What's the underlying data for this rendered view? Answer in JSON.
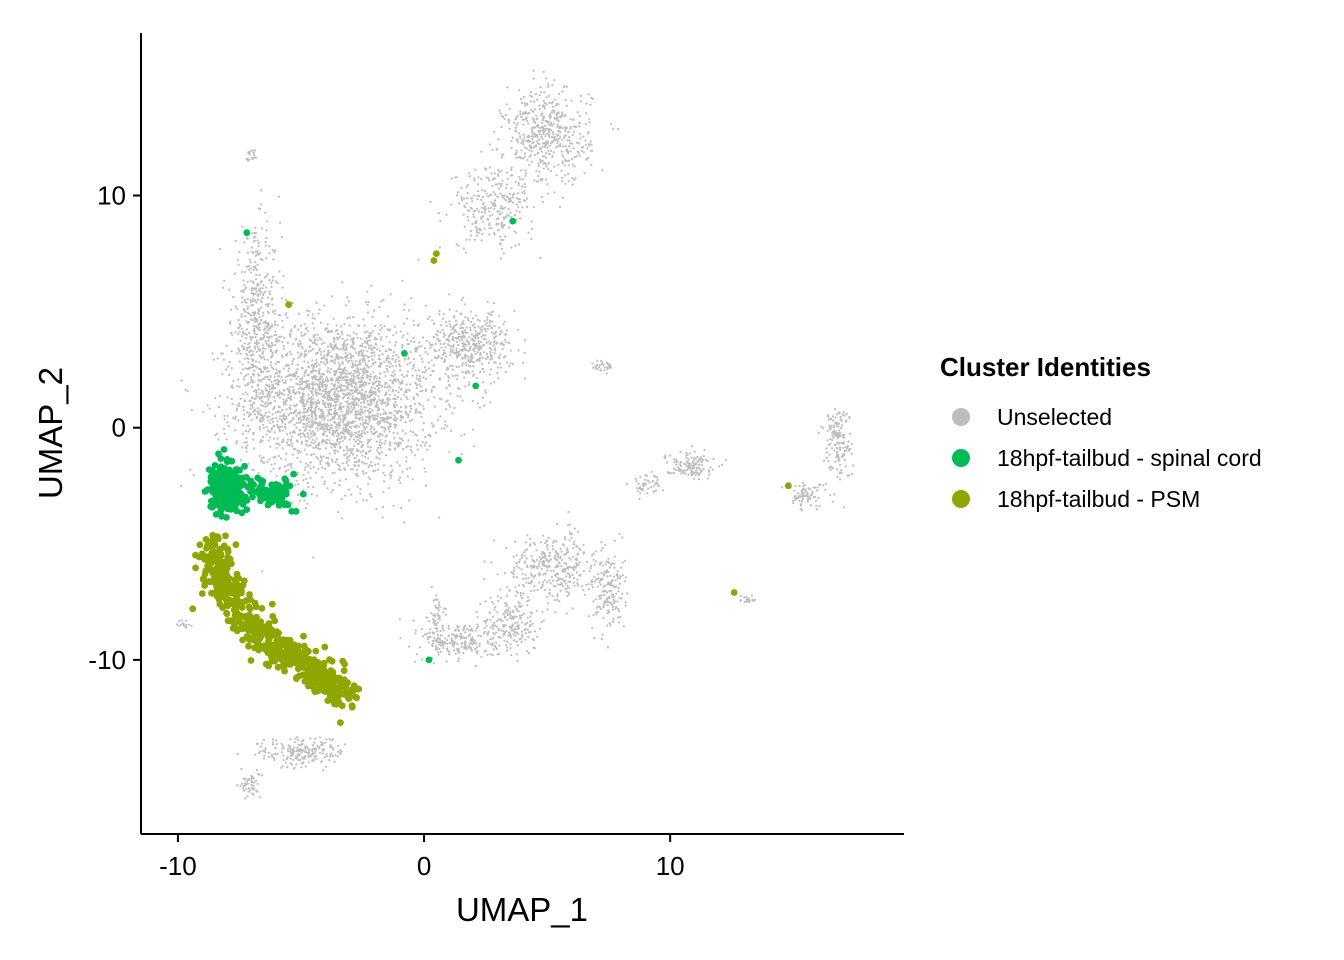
{
  "chart_data": {
    "type": "scatter",
    "title": "",
    "xlabel": "UMAP_1",
    "ylabel": "UMAP_2",
    "xlim": [
      -11.5,
      19.5
    ],
    "ylim": [
      -17.5,
      17
    ],
    "x_ticks": [
      -10,
      0,
      10
    ],
    "y_ticks": [
      10,
      0,
      -10
    ],
    "grid": false,
    "legend": {
      "title": "Cluster Identities",
      "placement": "right",
      "entries": [
        {
          "label": "Unselected",
          "color": "#bdbdbd"
        },
        {
          "label": "18hpf-tailbud - spinal cord",
          "color": "#00ba55"
        },
        {
          "label": "18hpf-tailbud - PSM",
          "color": "#8fa600"
        }
      ]
    },
    "series": [
      {
        "name": "Unselected",
        "color": "#bdbdbd",
        "regions": [
          {
            "center": [
              -3.5,
              1.2
            ],
            "spread": [
              3.6,
              3.2
            ],
            "count": 2600
          },
          {
            "center": [
              -6.8,
              4.5
            ],
            "spread": [
              0.9,
              3.5
            ],
            "count": 450
          },
          {
            "center": [
              1.8,
              3.6
            ],
            "spread": [
              1.6,
              1.3
            ],
            "count": 450
          },
          {
            "center": [
              5.0,
              12.5
            ],
            "spread": [
              1.6,
              1.9
            ],
            "count": 500
          },
          {
            "center": [
              2.8,
              9.5
            ],
            "spread": [
              1.5,
              1.6
            ],
            "count": 260
          },
          {
            "center": [
              5.2,
              -6.0
            ],
            "spread": [
              1.7,
              1.3
            ],
            "count": 350
          },
          {
            "center": [
              7.5,
              -7.0
            ],
            "spread": [
              0.6,
              1.6
            ],
            "count": 160
          },
          {
            "center": [
              1.5,
              -9.2
            ],
            "spread": [
              1.4,
              0.8
            ],
            "count": 200
          },
          {
            "center": [
              3.5,
              -8.5
            ],
            "spread": [
              1.0,
              1.2
            ],
            "count": 200
          },
          {
            "center": [
              0.5,
              -8.2
            ],
            "spread": [
              0.25,
              1.0
            ],
            "count": 60
          },
          {
            "center": [
              10.8,
              -1.6
            ],
            "spread": [
              0.9,
              0.5
            ],
            "count": 130
          },
          {
            "center": [
              9.0,
              -2.4
            ],
            "spread": [
              0.6,
              0.4
            ],
            "count": 50
          },
          {
            "center": [
              16.8,
              -0.6
            ],
            "spread": [
              0.5,
              1.5
            ],
            "count": 160
          },
          {
            "center": [
              15.5,
              -2.9
            ],
            "spread": [
              0.7,
              0.5
            ],
            "count": 80
          },
          {
            "center": [
              -5.0,
              -14.0
            ],
            "spread": [
              1.6,
              0.6
            ],
            "count": 200
          },
          {
            "center": [
              -7.1,
              -15.4
            ],
            "spread": [
              0.4,
              0.5
            ],
            "count": 50
          },
          {
            "center": [
              7.3,
              2.7
            ],
            "spread": [
              0.4,
              0.3
            ],
            "count": 30
          },
          {
            "center": [
              -7.0,
              11.7
            ],
            "spread": [
              0.2,
              0.3
            ],
            "count": 20
          },
          {
            "center": [
              13.2,
              -7.4
            ],
            "spread": [
              0.4,
              0.2
            ],
            "count": 20
          },
          {
            "center": [
              -9.7,
              -8.5
            ],
            "spread": [
              0.3,
              0.2
            ],
            "count": 15
          }
        ]
      },
      {
        "name": "18hpf-tailbud - spinal cord",
        "color": "#00ba55",
        "regions": [
          {
            "center": [
              -8.0,
              -2.6
            ],
            "spread": [
              0.55,
              0.8
            ],
            "count": 420
          },
          {
            "center": [
              -6.2,
              -2.8
            ],
            "spread": [
              0.9,
              0.6
            ],
            "count": 70
          }
        ],
        "points": [
          [
            -7.2,
            8.4
          ],
          [
            3.6,
            8.9
          ],
          [
            -0.8,
            3.2
          ],
          [
            2.1,
            1.8
          ],
          [
            1.4,
            -1.4
          ],
          [
            0.2,
            -10.0
          ],
          [
            -5.2,
            -3.6
          ],
          [
            -5.3,
            -2.0
          ]
        ]
      },
      {
        "name": "18hpf-tailbud - PSM",
        "color": "#8fa600",
        "path": [
          [
            -8.5,
            -5.0
          ],
          [
            -8.3,
            -6.5
          ],
          [
            -7.6,
            -7.8
          ],
          [
            -6.3,
            -9.2
          ],
          [
            -5.1,
            -10.0
          ],
          [
            -4.0,
            -10.8
          ],
          [
            -3.2,
            -11.6
          ]
        ],
        "points_per_segment": 90,
        "jitter": 0.35,
        "points": [
          [
            -9.4,
            -7.8
          ],
          [
            -5.5,
            5.3
          ],
          [
            0.4,
            7.2
          ],
          [
            0.5,
            7.5
          ],
          [
            -3.4,
            -12.7
          ],
          [
            12.6,
            -7.1
          ],
          [
            14.8,
            -2.5
          ]
        ]
      }
    ]
  }
}
